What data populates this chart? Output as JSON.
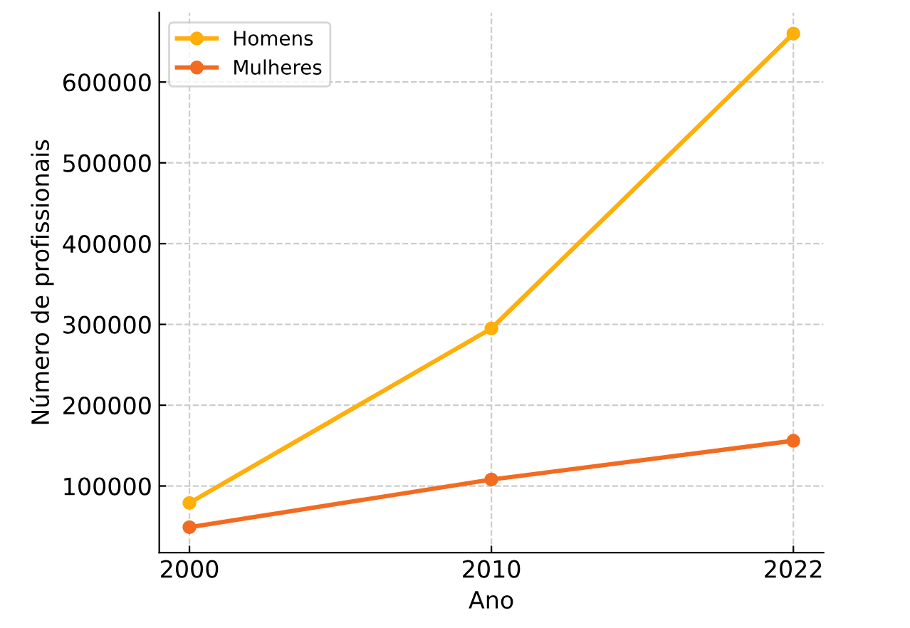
{
  "chart_data": {
    "type": "line",
    "xlabel": "Ano",
    "ylabel": "Número de profissionais",
    "categories": [
      "2000",
      "2010",
      "2022"
    ],
    "series": [
      {
        "name": "Homens",
        "color": "#ffae0a",
        "values": [
          79000,
          295000,
          660000
        ]
      },
      {
        "name": "Mulheres",
        "color": "#f26b21",
        "values": [
          49000,
          108000,
          156000
        ]
      }
    ],
    "ylim": [
      17500,
      686000
    ],
    "yticks": [
      100000,
      200000,
      300000,
      400000,
      500000,
      600000
    ],
    "grid": true,
    "legend": "top left",
    "marker": "circle",
    "line_style": "solid"
  }
}
